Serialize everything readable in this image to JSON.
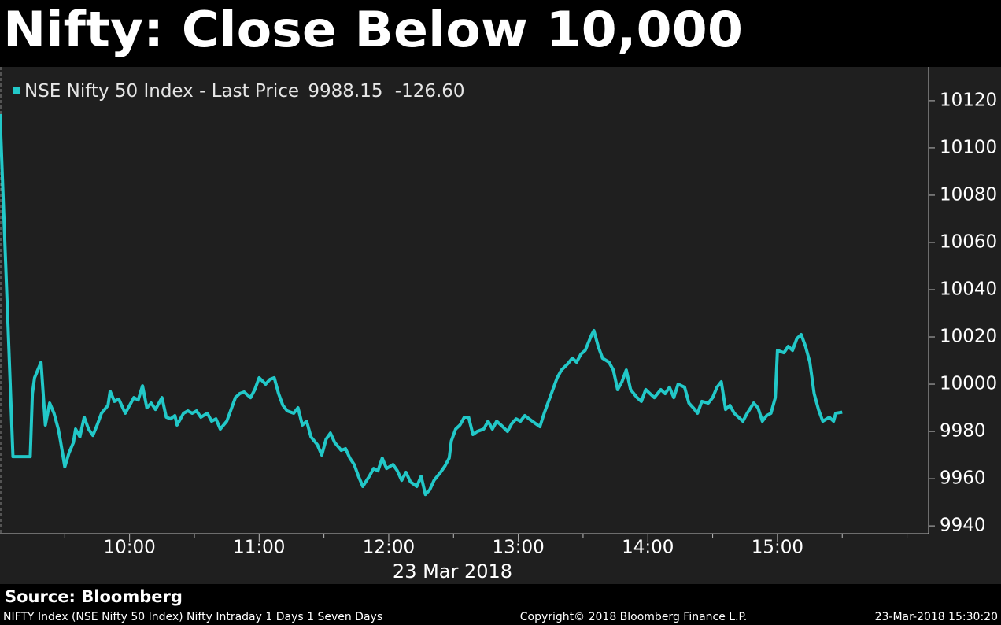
{
  "chart_data": {
    "type": "line",
    "title": "Nifty: Close Below 10,000",
    "xlabel": "23 Mar 2018",
    "source": "Source: Bloomberg",
    "footer": {
      "left": "NIFTY Index (NSE Nifty 50 Index) Nifty Intraday 1 Days 1 Seven Days",
      "center": "Copyright© 2018 Bloomberg Finance L.P.",
      "right": "23-Mar-2018 15:30:20"
    },
    "y_axis_side": "right",
    "grid": false,
    "xlim": [
      "09:00",
      "16:10"
    ],
    "xticks": [
      "10:00",
      "11:00",
      "12:00",
      "13:00",
      "14:00",
      "15:00"
    ],
    "xminorticks": [
      "09:30",
      "10:30",
      "11:30",
      "12:30",
      "13:30",
      "14:30",
      "15:30",
      "16:00"
    ],
    "ylim": [
      9936.7,
      10134.3
    ],
    "yticks": [
      9940,
      9960,
      9980,
      10000,
      10020,
      10040,
      10060,
      10080,
      10100,
      10120
    ],
    "x": [
      "09:00",
      "09:06",
      "09:14",
      "09:15",
      "09:16",
      "09:19",
      "09:20",
      "09:21",
      "09:23",
      "09:25",
      "09:27",
      "09:28",
      "09:30",
      "09:32",
      "09:34",
      "09:35",
      "09:37",
      "09:39",
      "09:41",
      "09:43",
      "09:45",
      "09:47",
      "09:50",
      "09:51",
      "09:53",
      "09:55",
      "09:58",
      "10:00",
      "10:02",
      "10:04",
      "10:06",
      "10:08",
      "10:10",
      "10:12",
      "10:15",
      "10:17",
      "10:19",
      "10:21",
      "10:22",
      "10:25",
      "10:27",
      "10:29",
      "10:31",
      "10:33",
      "10:36",
      "10:38",
      "10:40",
      "10:42",
      "10:45",
      "10:47",
      "10:49",
      "10:51",
      "10:53",
      "10:56",
      "10:58",
      "11:00",
      "11:03",
      "11:05",
      "11:07",
      "11:09",
      "11:11",
      "11:13",
      "11:16",
      "11:18",
      "11:20",
      "11:22",
      "11:24",
      "11:27",
      "11:29",
      "11:31",
      "11:33",
      "11:35",
      "11:38",
      "11:40",
      "11:42",
      "11:44",
      "11:46",
      "11:48",
      "11:51",
      "11:53",
      "11:55",
      "11:57",
      "11:59",
      "12:02",
      "12:04",
      "12:06",
      "12:08",
      "12:10",
      "12:13",
      "12:15",
      "12:17",
      "12:19",
      "12:21",
      "12:24",
      "12:26",
      "12:28",
      "12:29",
      "12:31",
      "12:33",
      "12:35",
      "12:37",
      "12:39",
      "12:41",
      "12:44",
      "12:46",
      "12:48",
      "12:50",
      "12:52",
      "12:55",
      "12:57",
      "12:59",
      "13:01",
      "13:03",
      "13:05",
      "13:08",
      "13:10",
      "13:12",
      "13:14",
      "13:16",
      "13:18",
      "13:20",
      "13:23",
      "13:25",
      "13:27",
      "13:29",
      "13:31",
      "13:34",
      "13:35",
      "13:37",
      "13:39",
      "13:42",
      "13:44",
      "13:46",
      "13:48",
      "13:50",
      "13:52",
      "13:55",
      "13:57",
      "13:59",
      "14:01",
      "14:03",
      "14:06",
      "14:08",
      "14:10",
      "14:12",
      "14:14",
      "14:17",
      "14:19",
      "14:21",
      "14:23",
      "14:25",
      "14:28",
      "14:30",
      "14:32",
      "14:34",
      "14:36",
      "14:38",
      "14:40",
      "14:42",
      "14:44",
      "14:46",
      "14:49",
      "14:51",
      "14:53",
      "14:55",
      "14:57",
      "14:59",
      "15:00",
      "15:03",
      "15:05",
      "15:07",
      "15:09",
      "15:11",
      "15:13",
      "15:15",
      "15:17",
      "15:19",
      "15:21",
      "15:24",
      "15:26",
      "15:27",
      "15:30"
    ],
    "series": [
      {
        "name": "NSE Nifty 50 Index - Last Price",
        "color": "#22c8c8",
        "last_price": 9988.15,
        "change": {
          "value": -126.6,
          "label": "-126.60"
        },
        "values": [
          10114.3,
          9969.3,
          9969.3,
          9996,
          10002.7,
          10009.3,
          9996,
          9982.7,
          9992,
          9987.7,
          9981,
          9976,
          9965,
          9971,
          9975.3,
          9981,
          9977.7,
          9986,
          9981,
          9978.3,
          9982.7,
          9987.7,
          9991,
          9997,
          9992.7,
          9993.7,
          9987.7,
          9991,
          9994.3,
          9993.3,
          9999.3,
          9990,
          9992,
          9989.3,
          9994.3,
          9986,
          9985.3,
          9986.7,
          9982.7,
          9987.7,
          9988.7,
          9987.7,
          9988.7,
          9986,
          9987.7,
          9984.3,
          9985.3,
          9981,
          9984.3,
          9989.3,
          9994.3,
          9996,
          9996.7,
          9994.3,
          9997.7,
          10002.7,
          10000,
          10002,
          10002.7,
          9996,
          9991,
          9988.7,
          9987.7,
          9990,
          9982.7,
          9984.3,
          9977.7,
          9974.3,
          9970,
          9976.7,
          9979.3,
          9975.3,
          9972,
          9972.7,
          9968.7,
          9966,
          9961,
          9956.7,
          9961,
          9964.3,
          9963.3,
          9968.7,
          9964.3,
          9966,
          9963.3,
          9959.3,
          9962.7,
          9958.7,
          9956.7,
          9961,
          9953.3,
          9955.3,
          9959.3,
          9962.7,
          9965.3,
          9968.7,
          9976,
          9981,
          9982.7,
          9986,
          9986,
          9978.7,
          9980,
          9981,
          9984.3,
          9981,
          9984.3,
          9982.7,
          9980,
          9983.3,
          9985.3,
          9984.3,
          9986.7,
          9985.3,
          9983.3,
          9982,
          9987.7,
          9992.7,
          9997.7,
          10002.7,
          10006,
          10008.7,
          10011,
          10009.3,
          10012.7,
          10014.3,
          10021,
          10022.7,
          10016,
          10011,
          10009.3,
          10006,
          9997.7,
          10001,
          10006,
          9997.7,
          9994.3,
          9992.7,
          9997.7,
          9996,
          9994.3,
          9997.7,
          9996,
          9998.7,
          9994.3,
          10000,
          9998.7,
          9992,
          9990,
          9987.7,
          9992.7,
          9992,
          9994.3,
          9998.7,
          10001,
          9989.3,
          9991,
          9987.7,
          9986,
          9984.3,
          9987.7,
          9992,
          9990,
          9984.3,
          9986.7,
          9987.7,
          9994.3,
          10014.3,
          10013.3,
          10016,
          10014.3,
          10019.3,
          10021,
          10016,
          10009.3,
          9996,
          9989.3,
          9984.3,
          9986,
          9984.3,
          9987.7,
          9988.15
        ]
      }
    ]
  }
}
